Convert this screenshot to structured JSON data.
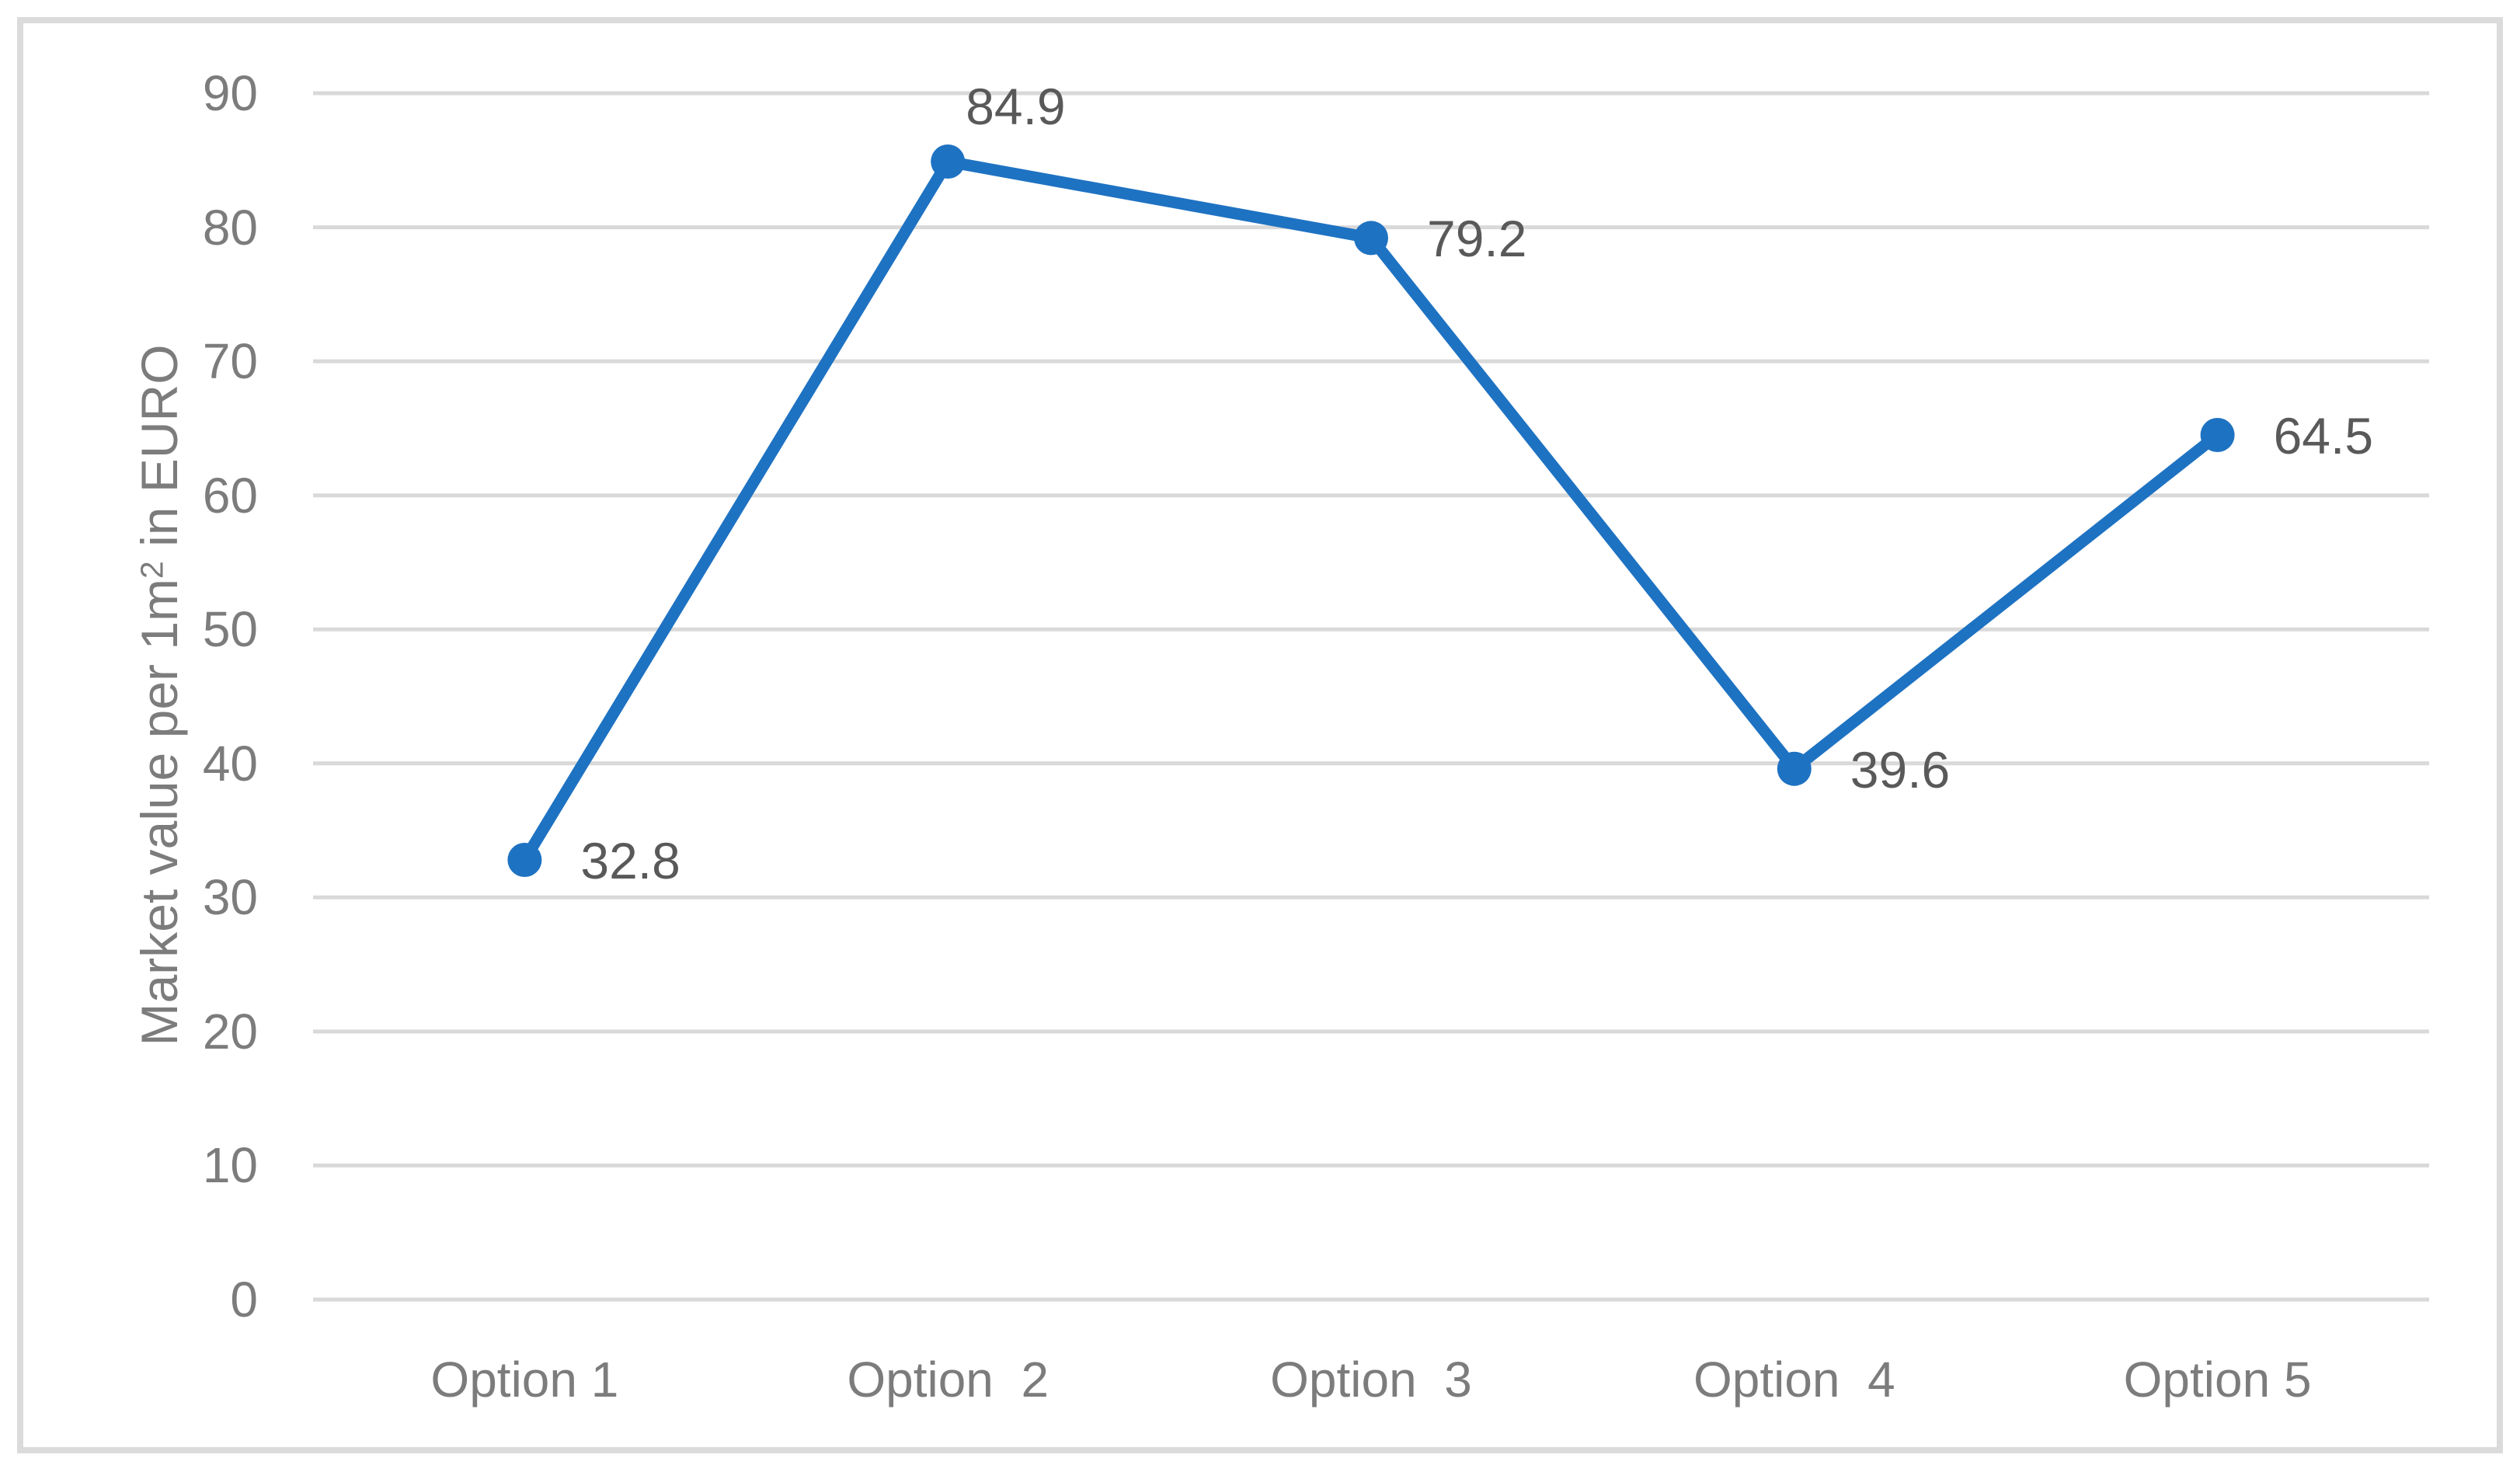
{
  "figure": {
    "background_color": "#FFFFFF",
    "frame_color": "#DBDBDB"
  },
  "chart_data": {
    "type": "line",
    "title": "",
    "xlabel": "",
    "ylabel": "Market value per 1m² in EURO",
    "ylabel_parts": {
      "prefix": "Market value per 1m",
      "superscript": "2",
      "suffix": " in EURO"
    },
    "categories": [
      "Option 1",
      "Option  2",
      "Option  3",
      "Option  4",
      "Option 5"
    ],
    "values": [
      32.8,
      84.9,
      79.2,
      39.6,
      64.5
    ],
    "data_labels": [
      "32.8",
      "84.9",
      "79.2",
      "39.6",
      "64.5"
    ],
    "data_label_placement": [
      "right",
      "above-right",
      "right",
      "right",
      "right"
    ],
    "ylim": [
      0,
      90
    ],
    "yticks": [
      "0",
      "10",
      "20",
      "30",
      "40",
      "50",
      "60",
      "70",
      "80",
      "90"
    ],
    "grid": true,
    "legend": false,
    "colors": {
      "line": "#1E72C2",
      "marker": "#1E72C2",
      "gridline": "#D9D9D9",
      "axis_text": "#7C7C7C",
      "data_label_text": "#595959"
    }
  }
}
